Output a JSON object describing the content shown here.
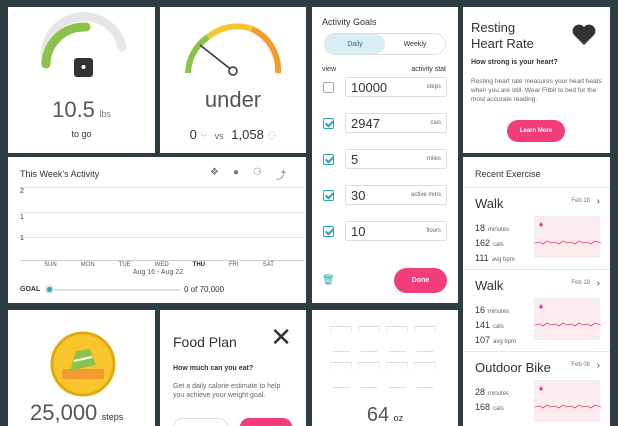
{
  "weight": {
    "value": "10.5",
    "unit": "lbs",
    "sub": "to go",
    "progress": 0.45
  },
  "calories": {
    "status": "under",
    "eaten": "0",
    "vs": "vs",
    "burned": "1,058"
  },
  "week_activity": {
    "title": "This Week's Activity",
    "days": [
      "SUN",
      "MON",
      "TUE",
      "WED",
      "THU",
      "FRI",
      "SAT"
    ],
    "active_day": "THU",
    "range": "Aug 16 - Aug 22",
    "yticks": [
      "2",
      "1",
      "1"
    ],
    "goal_label": "GOAL",
    "goal_value": "0 of 70,000",
    "icons": [
      "steps-icon",
      "location-icon",
      "flame-icon",
      "stairs-icon"
    ]
  },
  "activity_goals": {
    "title": "Activity Goals",
    "tabs": [
      "Daily",
      "Weekly"
    ],
    "active_tab": "Daily",
    "col_view": "view",
    "col_stat": "activity stat",
    "rows": [
      {
        "value": "10000",
        "unit": "steps",
        "checked": false
      },
      {
        "value": "2947",
        "unit": "cals",
        "checked": true
      },
      {
        "value": "5",
        "unit": "miles",
        "checked": true
      },
      {
        "value": "30",
        "unit": "active mins",
        "checked": true
      },
      {
        "value": "10",
        "unit": "floors",
        "checked": true
      }
    ],
    "done_label": "Done"
  },
  "resting_hr": {
    "title_line1": "Resting",
    "title_line2": "Heart Rate",
    "subtitle": "How strong is your heart?",
    "body": "Resting heart rate measures your heart beats when you are still. Wear Fitbit to bed for the most accurate reading.",
    "button": "Learn More"
  },
  "recent_exercise": {
    "title": "Recent Exercise",
    "items": [
      {
        "name": "Walk",
        "date": "Feb 18",
        "s1v": "18",
        "s1u": "minutes",
        "s2v": "162",
        "s2u": "cals",
        "s3v": "111",
        "s3u": "avg bpm"
      },
      {
        "name": "Walk",
        "date": "Feb 18",
        "s1v": "16",
        "s1u": "minutes",
        "s2v": "141",
        "s2u": "cals",
        "s3v": "107",
        "s3u": "avg bpm"
      },
      {
        "name": "Outdoor Bike",
        "date": "Feb 08",
        "s1v": "28",
        "s1u": "minutes",
        "s2v": "168",
        "s2u": "cals",
        "s3v": "",
        "s3u": ""
      }
    ]
  },
  "steps": {
    "value": "25,000",
    "unit": "steps"
  },
  "food_plan": {
    "title": "Food Plan",
    "subtitle": "How much can you eat?",
    "body": "Get a daily calorie estimate to help you achieve your weight goal."
  },
  "water": {
    "value": "64",
    "unit": "oz"
  },
  "colors": {
    "accent": "#f33c7b",
    "teal": "#2aa3b3",
    "green": "#8bc34a",
    "bg": "#2e3d42"
  }
}
